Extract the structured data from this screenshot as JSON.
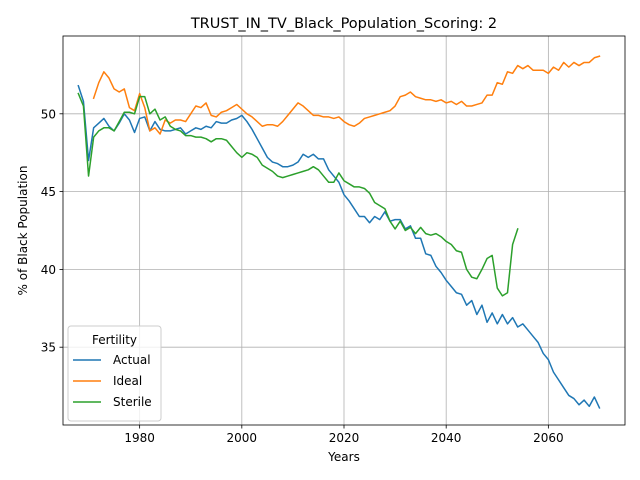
{
  "chart_data": {
    "type": "line",
    "title": "TRUST_IN_TV_Black_Population_Scoring: 2",
    "xlabel": "Years",
    "ylabel": "% of Black Population",
    "xlim": [
      1965,
      2075
    ],
    "ylim": [
      30,
      55
    ],
    "xticks": [
      1980,
      2000,
      2020,
      2040,
      2060
    ],
    "yticks": [
      35,
      40,
      45,
      50
    ],
    "grid": true,
    "legend": {
      "title": "Fertility",
      "placement": "lower-left"
    },
    "series": [
      {
        "name": "Actual",
        "color": "#1f77b4",
        "points": [
          [
            1968,
            51.8
          ],
          [
            1969,
            50.8
          ],
          [
            1970,
            47.0
          ],
          [
            1971,
            49.1
          ],
          [
            1972,
            49.4
          ],
          [
            1973,
            49.7
          ],
          [
            1974,
            49.2
          ],
          [
            1975,
            48.9
          ],
          [
            1976,
            49.4
          ],
          [
            1977,
            50.0
          ],
          [
            1978,
            49.6
          ],
          [
            1979,
            48.8
          ],
          [
            1980,
            49.7
          ],
          [
            1981,
            49.8
          ],
          [
            1982,
            48.9
          ],
          [
            1983,
            49.5
          ],
          [
            1984,
            49.0
          ],
          [
            1985,
            48.9
          ],
          [
            1986,
            48.9
          ],
          [
            1987,
            49.0
          ],
          [
            1988,
            49.1
          ],
          [
            1989,
            48.7
          ],
          [
            1990,
            48.9
          ],
          [
            1991,
            49.1
          ],
          [
            1992,
            49.0
          ],
          [
            1993,
            49.2
          ],
          [
            1994,
            49.1
          ],
          [
            1995,
            49.5
          ],
          [
            1996,
            49.4
          ],
          [
            1997,
            49.4
          ],
          [
            1998,
            49.6
          ],
          [
            1999,
            49.7
          ],
          [
            2000,
            49.9
          ],
          [
            2001,
            49.5
          ],
          [
            2002,
            49.0
          ],
          [
            2003,
            48.4
          ],
          [
            2004,
            47.8
          ],
          [
            2005,
            47.2
          ],
          [
            2006,
            46.9
          ],
          [
            2007,
            46.8
          ],
          [
            2008,
            46.6
          ],
          [
            2009,
            46.6
          ],
          [
            2010,
            46.7
          ],
          [
            2011,
            46.9
          ],
          [
            2012,
            47.4
          ],
          [
            2013,
            47.2
          ],
          [
            2014,
            47.4
          ],
          [
            2015,
            47.1
          ],
          [
            2016,
            47.1
          ],
          [
            2017,
            46.4
          ],
          [
            2018,
            46.0
          ],
          [
            2019,
            45.6
          ],
          [
            2020,
            44.8
          ],
          [
            2021,
            44.4
          ],
          [
            2022,
            43.9
          ],
          [
            2023,
            43.4
          ],
          [
            2024,
            43.4
          ],
          [
            2025,
            43.0
          ],
          [
            2026,
            43.4
          ],
          [
            2027,
            43.2
          ],
          [
            2028,
            43.7
          ],
          [
            2029,
            43.1
          ],
          [
            2030,
            43.2
          ],
          [
            2031,
            43.2
          ],
          [
            2032,
            42.6
          ],
          [
            2033,
            42.8
          ],
          [
            2034,
            42.0
          ],
          [
            2035,
            42.0
          ],
          [
            2036,
            41.0
          ],
          [
            2037,
            40.9
          ],
          [
            2038,
            40.2
          ],
          [
            2039,
            39.8
          ],
          [
            2040,
            39.3
          ],
          [
            2041,
            38.9
          ],
          [
            2042,
            38.5
          ],
          [
            2043,
            38.4
          ],
          [
            2044,
            37.7
          ],
          [
            2045,
            38.0
          ],
          [
            2046,
            37.1
          ],
          [
            2047,
            37.7
          ],
          [
            2048,
            36.6
          ],
          [
            2049,
            37.2
          ],
          [
            2050,
            36.5
          ],
          [
            2051,
            37.1
          ],
          [
            2052,
            36.5
          ],
          [
            2053,
            36.9
          ],
          [
            2054,
            36.3
          ],
          [
            2055,
            36.5
          ],
          [
            2056,
            36.1
          ],
          [
            2057,
            35.7
          ],
          [
            2058,
            35.3
          ],
          [
            2059,
            34.6
          ],
          [
            2060,
            34.2
          ],
          [
            2061,
            33.4
          ],
          [
            2062,
            32.9
          ],
          [
            2063,
            32.4
          ],
          [
            2064,
            31.9
          ],
          [
            2065,
            31.7
          ],
          [
            2066,
            31.3
          ],
          [
            2067,
            31.6
          ],
          [
            2068,
            31.2
          ],
          [
            2069,
            31.8
          ],
          [
            2070,
            31.1
          ]
        ]
      },
      {
        "name": "Ideal",
        "color": "#ff7f0e",
        "points": [
          [
            1971,
            51.0
          ],
          [
            1972,
            52.0
          ],
          [
            1973,
            52.7
          ],
          [
            1974,
            52.3
          ],
          [
            1975,
            51.6
          ],
          [
            1976,
            51.4
          ],
          [
            1977,
            51.6
          ],
          [
            1978,
            50.4
          ],
          [
            1979,
            50.2
          ],
          [
            1980,
            51.3
          ],
          [
            1981,
            50.4
          ],
          [
            1982,
            48.9
          ],
          [
            1983,
            49.1
          ],
          [
            1984,
            48.7
          ],
          [
            1985,
            49.6
          ],
          [
            1986,
            49.4
          ],
          [
            1987,
            49.6
          ],
          [
            1988,
            49.6
          ],
          [
            1989,
            49.5
          ],
          [
            1990,
            50.0
          ],
          [
            1991,
            50.5
          ],
          [
            1992,
            50.4
          ],
          [
            1993,
            50.7
          ],
          [
            1994,
            49.9
          ],
          [
            1995,
            49.8
          ],
          [
            1996,
            50.1
          ],
          [
            1997,
            50.2
          ],
          [
            1998,
            50.4
          ],
          [
            1999,
            50.6
          ],
          [
            2000,
            50.3
          ],
          [
            2001,
            50.0
          ],
          [
            2002,
            49.8
          ],
          [
            2003,
            49.5
          ],
          [
            2004,
            49.2
          ],
          [
            2005,
            49.3
          ],
          [
            2006,
            49.3
          ],
          [
            2007,
            49.2
          ],
          [
            2008,
            49.5
          ],
          [
            2009,
            49.9
          ],
          [
            2010,
            50.3
          ],
          [
            2011,
            50.7
          ],
          [
            2012,
            50.5
          ],
          [
            2013,
            50.2
          ],
          [
            2014,
            49.9
          ],
          [
            2015,
            49.9
          ],
          [
            2016,
            49.8
          ],
          [
            2017,
            49.8
          ],
          [
            2018,
            49.7
          ],
          [
            2019,
            49.8
          ],
          [
            2020,
            49.5
          ],
          [
            2021,
            49.3
          ],
          [
            2022,
            49.2
          ],
          [
            2023,
            49.4
          ],
          [
            2024,
            49.7
          ],
          [
            2025,
            49.8
          ],
          [
            2026,
            49.9
          ],
          [
            2027,
            50.0
          ],
          [
            2028,
            50.1
          ],
          [
            2029,
            50.2
          ],
          [
            2030,
            50.5
          ],
          [
            2031,
            51.1
          ],
          [
            2032,
            51.2
          ],
          [
            2033,
            51.4
          ],
          [
            2034,
            51.1
          ],
          [
            2035,
            51.0
          ],
          [
            2036,
            50.9
          ],
          [
            2037,
            50.9
          ],
          [
            2038,
            50.8
          ],
          [
            2039,
            50.9
          ],
          [
            2040,
            50.7
          ],
          [
            2041,
            50.8
          ],
          [
            2042,
            50.6
          ],
          [
            2043,
            50.8
          ],
          [
            2044,
            50.5
          ],
          [
            2045,
            50.5
          ],
          [
            2046,
            50.6
          ],
          [
            2047,
            50.7
          ],
          [
            2048,
            51.2
          ],
          [
            2049,
            51.2
          ],
          [
            2050,
            52.0
          ],
          [
            2051,
            51.9
          ],
          [
            2052,
            52.7
          ],
          [
            2053,
            52.6
          ],
          [
            2054,
            53.1
          ],
          [
            2055,
            52.9
          ],
          [
            2056,
            53.1
          ],
          [
            2057,
            52.8
          ],
          [
            2058,
            52.8
          ],
          [
            2059,
            52.8
          ],
          [
            2060,
            52.6
          ],
          [
            2061,
            53.0
          ],
          [
            2062,
            52.8
          ],
          [
            2063,
            53.3
          ],
          [
            2064,
            53.0
          ],
          [
            2065,
            53.3
          ],
          [
            2066,
            53.1
          ],
          [
            2067,
            53.3
          ],
          [
            2068,
            53.3
          ],
          [
            2069,
            53.6
          ],
          [
            2070,
            53.7
          ]
        ]
      },
      {
        "name": "Sterile",
        "color": "#2ca02c",
        "points": [
          [
            1968,
            51.3
          ],
          [
            1969,
            50.5
          ],
          [
            1970,
            46.0
          ],
          [
            1971,
            48.5
          ],
          [
            1972,
            48.9
          ],
          [
            1973,
            49.1
          ],
          [
            1974,
            49.1
          ],
          [
            1975,
            48.9
          ],
          [
            1976,
            49.5
          ],
          [
            1977,
            50.1
          ],
          [
            1978,
            50.1
          ],
          [
            1979,
            50.0
          ],
          [
            1980,
            51.1
          ],
          [
            1981,
            51.1
          ],
          [
            1982,
            50.0
          ],
          [
            1983,
            50.3
          ],
          [
            1984,
            49.6
          ],
          [
            1985,
            49.8
          ],
          [
            1986,
            49.2
          ],
          [
            1987,
            49.0
          ],
          [
            1988,
            48.9
          ],
          [
            1989,
            48.6
          ],
          [
            1990,
            48.6
          ],
          [
            1991,
            48.5
          ],
          [
            1992,
            48.5
          ],
          [
            1993,
            48.4
          ],
          [
            1994,
            48.2
          ],
          [
            1995,
            48.4
          ],
          [
            1996,
            48.4
          ],
          [
            1997,
            48.3
          ],
          [
            1998,
            47.9
          ],
          [
            1999,
            47.5
          ],
          [
            2000,
            47.2
          ],
          [
            2001,
            47.5
          ],
          [
            2002,
            47.4
          ],
          [
            2003,
            47.2
          ],
          [
            2004,
            46.7
          ],
          [
            2005,
            46.5
          ],
          [
            2006,
            46.3
          ],
          [
            2007,
            46.0
          ],
          [
            2008,
            45.9
          ],
          [
            2009,
            46.0
          ],
          [
            2010,
            46.1
          ],
          [
            2011,
            46.2
          ],
          [
            2012,
            46.3
          ],
          [
            2013,
            46.4
          ],
          [
            2014,
            46.6
          ],
          [
            2015,
            46.4
          ],
          [
            2016,
            46.0
          ],
          [
            2017,
            45.6
          ],
          [
            2018,
            45.6
          ],
          [
            2019,
            46.2
          ],
          [
            2020,
            45.7
          ],
          [
            2021,
            45.5
          ],
          [
            2022,
            45.3
          ],
          [
            2023,
            45.3
          ],
          [
            2024,
            45.2
          ],
          [
            2025,
            44.9
          ],
          [
            2026,
            44.3
          ],
          [
            2027,
            44.1
          ],
          [
            2028,
            43.9
          ],
          [
            2029,
            43.1
          ],
          [
            2030,
            42.6
          ],
          [
            2031,
            43.1
          ],
          [
            2032,
            42.5
          ],
          [
            2033,
            42.7
          ],
          [
            2034,
            42.3
          ],
          [
            2035,
            42.7
          ],
          [
            2036,
            42.3
          ],
          [
            2037,
            42.2
          ],
          [
            2038,
            42.3
          ],
          [
            2039,
            42.1
          ],
          [
            2040,
            41.8
          ],
          [
            2041,
            41.6
          ],
          [
            2042,
            41.2
          ],
          [
            2043,
            41.1
          ],
          [
            2044,
            40.0
          ],
          [
            2045,
            39.5
          ],
          [
            2046,
            39.4
          ],
          [
            2047,
            40.0
          ],
          [
            2048,
            40.7
          ],
          [
            2049,
            40.9
          ],
          [
            2050,
            38.8
          ],
          [
            2051,
            38.3
          ],
          [
            2052,
            38.5
          ],
          [
            2053,
            41.6
          ],
          [
            2054,
            42.6
          ]
        ]
      }
    ]
  }
}
